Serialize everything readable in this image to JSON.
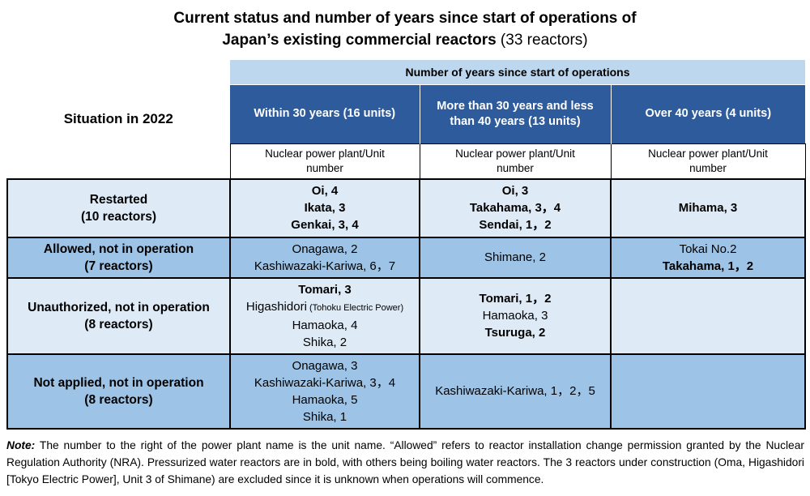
{
  "title": {
    "line1": "Current status and number of years since start of operations of",
    "line2_bold": "Japan’s existing commercial reactors",
    "line2_normal": " (33 reactors)"
  },
  "table": {
    "corner_label": "Situation in 2022",
    "band_header": "Number of years since start of operations",
    "columns": [
      {
        "header": "Within 30 years (16 units)",
        "subheader": "Nuclear power plant/Unit number"
      },
      {
        "header": "More than 30 years and less than 40 years (13 units)",
        "subheader": "Nuclear power plant/Unit number"
      },
      {
        "header": "Over 40 years (4 units)",
        "subheader": "Nuclear power plant/Unit number"
      }
    ],
    "rows": [
      {
        "label_line1": "Restarted",
        "label_line2": "(10 reactors)",
        "bg": "light",
        "cells": [
          [
            {
              "text": "Oi, 4",
              "bold": true
            },
            {
              "text": "Ikata, 3",
              "bold": true
            },
            {
              "text": "Genkai, 3, 4",
              "bold": true
            }
          ],
          [
            {
              "text": "Oi, 3",
              "bold": true
            },
            {
              "text": "Takahama, 3，4",
              "bold": true
            },
            {
              "text": "Sendai, 1，2",
              "bold": true
            }
          ],
          [
            {
              "text": "Mihama, 3",
              "bold": true
            }
          ]
        ]
      },
      {
        "label_line1": "Allowed, not in operation",
        "label_line2": "(7 reactors)",
        "bg": "medium",
        "cells": [
          [
            {
              "text": "Onagawa, 2",
              "bold": false
            },
            {
              "text": "Kashiwazaki-Kariwa, 6，7",
              "bold": false
            }
          ],
          [
            {
              "text": "Shimane, 2",
              "bold": false
            }
          ],
          [
            {
              "text": "Tokai No.2",
              "bold": false
            },
            {
              "text": "Takahama, 1，2",
              "bold": true
            }
          ]
        ]
      },
      {
        "label_line1": "Unauthorized, not in operation",
        "label_line2": "(8 reactors)",
        "bg": "light",
        "cells": [
          [
            {
              "text": "Tomari, 3",
              "bold": true
            },
            {
              "text": "Higashidori",
              "small_suffix": "(Tohoku Electric Power)",
              "bold": false
            },
            {
              "text": "Hamaoka, 4",
              "bold": false
            },
            {
              "text": "Shika, 2",
              "bold": false
            }
          ],
          [
            {
              "text": "Tomari, 1，2",
              "bold": true
            },
            {
              "text": "Hamaoka, 3",
              "bold": false
            },
            {
              "text": "Tsuruga, 2",
              "bold": true
            }
          ],
          []
        ]
      },
      {
        "label_line1": "Not applied, not in operation",
        "label_line2": "(8 reactors)",
        "bg": "medium",
        "cells": [
          [
            {
              "text": "Onagawa, 3",
              "bold": false
            },
            {
              "text": "Kashiwazaki-Kariwa, 3，4",
              "bold": false
            },
            {
              "text": "Hamaoka, 5",
              "bold": false
            },
            {
              "text": "Shika, 1",
              "bold": false
            }
          ],
          [
            {
              "text": "Kashiwazaki-Kariwa, 1，2，5",
              "bold": false
            }
          ],
          []
        ]
      }
    ]
  },
  "note": {
    "label": "Note:",
    "text": " The number to the right of the power plant name is the unit name. “Allowed” refers to reactor installation change permission granted by the Nuclear Regulation Authority (NRA). Pressurized water reactors are in bold, with others being boiling water reactors. The 3 reactors under construction (Oma, Higashidori [Tokyo Electric Power], Unit 3 of Shimane) are excluded since it is unknown when operations will commence."
  },
  "colors": {
    "band_bg": "#BDD7EE",
    "header_bg": "#2E5B9B",
    "row_light": "#DEEBF7",
    "row_medium": "#9DC3E6",
    "border": "#000000"
  }
}
